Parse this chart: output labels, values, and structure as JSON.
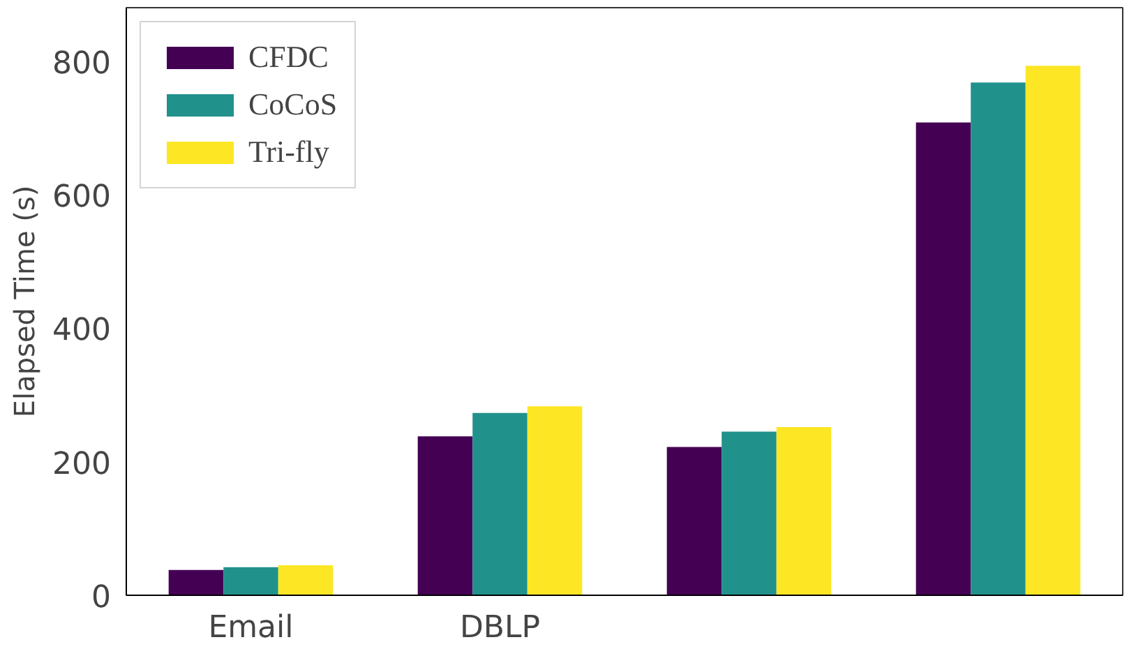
{
  "chart_data": {
    "type": "bar",
    "ylabel": "Elapsed Time (s)",
    "categories": [
      "Email",
      "DBLP",
      null,
      null
    ],
    "series": [
      {
        "name": "CFDC",
        "color": "#440154",
        "values": [
          38,
          238,
          222,
          708
        ]
      },
      {
        "name": "CoCoS",
        "color": "#21918c",
        "values": [
          42,
          273,
          245,
          768
        ]
      },
      {
        "name": "Tri-fly",
        "color": "#fde725",
        "values": [
          45,
          283,
          252,
          793
        ]
      }
    ],
    "ylim": [
      0,
      880
    ],
    "yticks": [
      0,
      200,
      400,
      600,
      800
    ],
    "grid": false,
    "legend": "top left"
  }
}
